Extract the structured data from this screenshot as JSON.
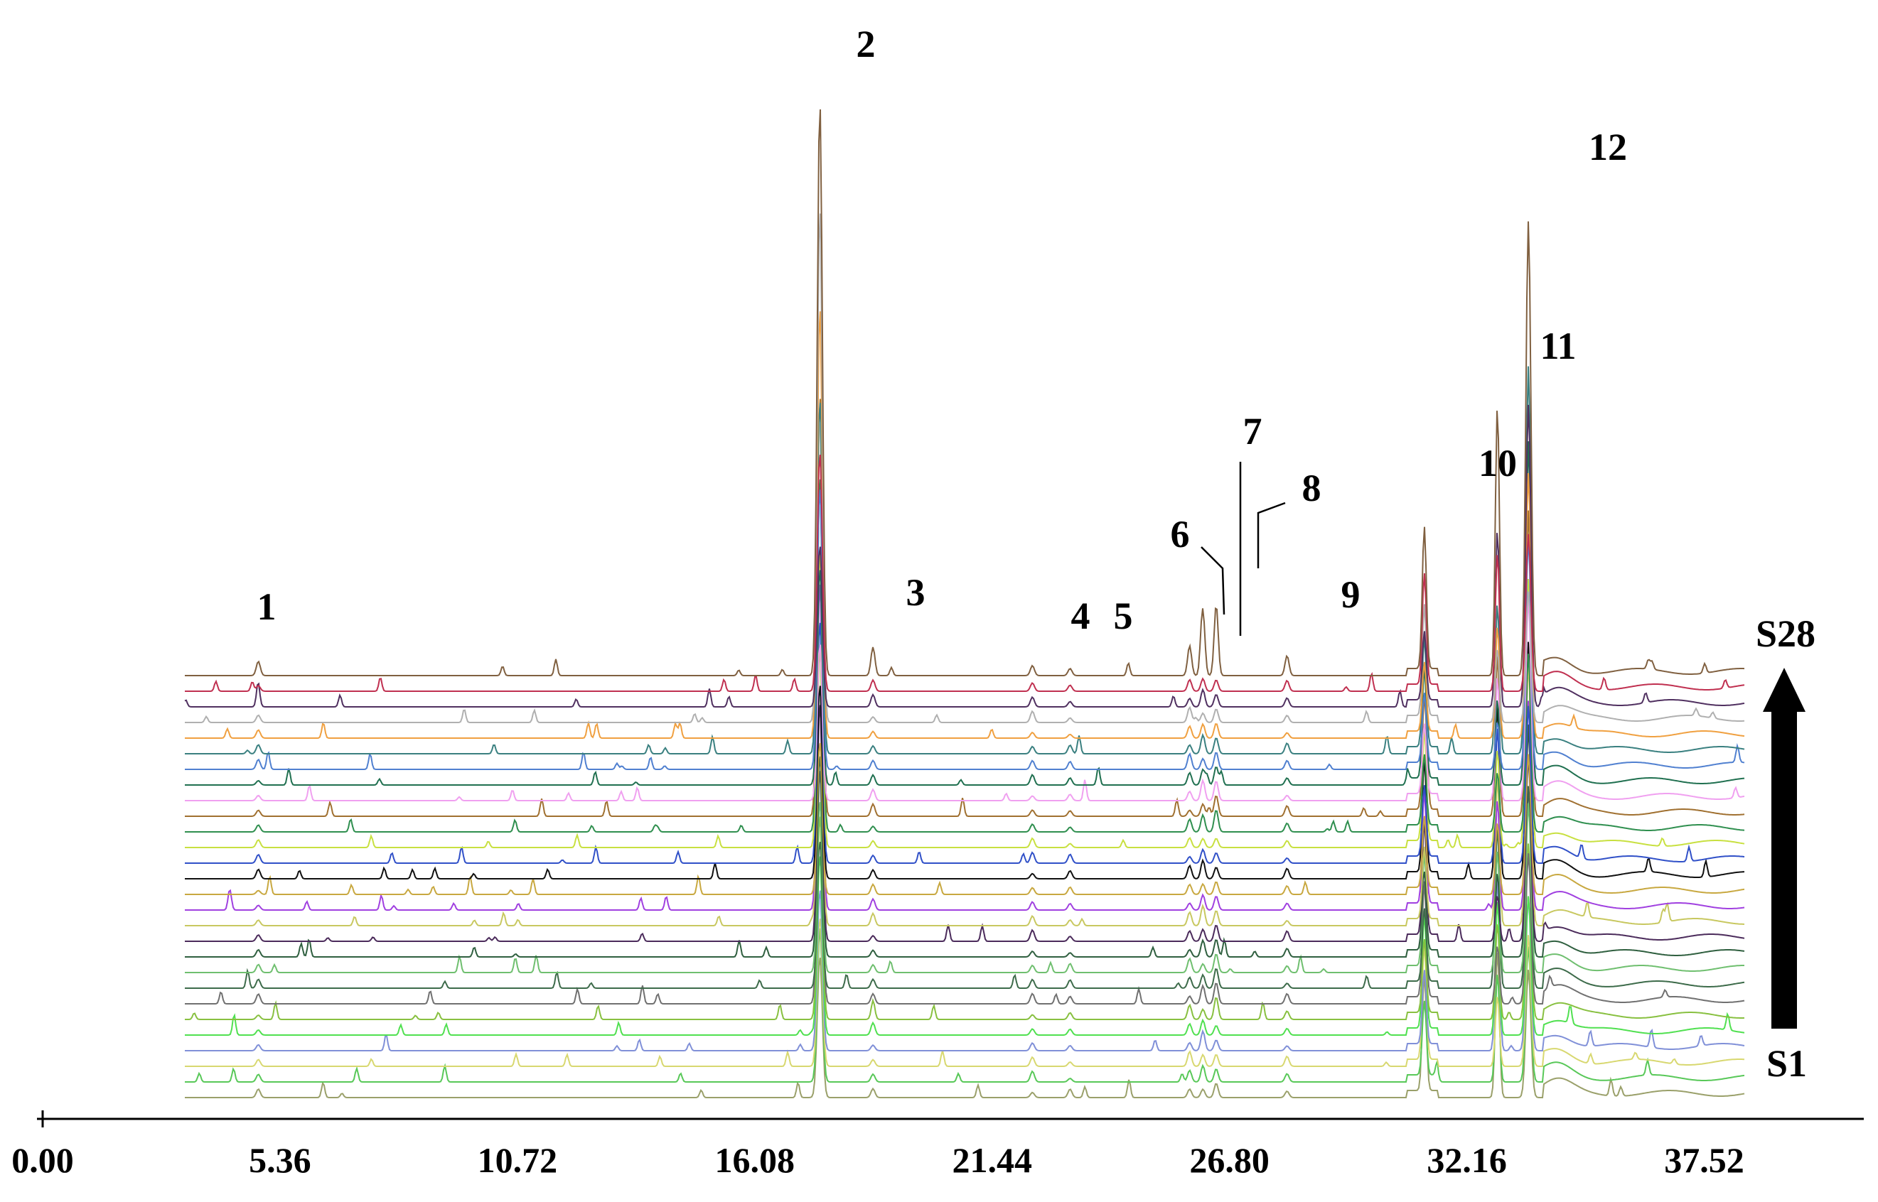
{
  "chart_data": {
    "type": "line",
    "description_free": true,
    "xlim": [
      0,
      38.5
    ],
    "x_ticks": [
      "0.00",
      "5.36",
      "10.72",
      "16.08",
      "21.44",
      "26.80",
      "32.16",
      "37.52"
    ],
    "x_tick_values": [
      0,
      5.36,
      10.72,
      16.08,
      21.44,
      26.8,
      32.16,
      37.52
    ],
    "grid": false,
    "sample_first": "S1",
    "sample_last": "S28",
    "sample_count": 28,
    "trace_colors": [
      "#9aa06a",
      "#58c858",
      "#d8d870",
      "#8090d8",
      "#50e050",
      "#88c040",
      "#707070",
      "#3d6b4a",
      "#6fbf6f",
      "#2f5f3f",
      "#4b2b5b",
      "#c8c860",
      "#a040e0",
      "#c8a840",
      "#101010",
      "#3050c8",
      "#c8e040",
      "#2f8f4f",
      "#a07030",
      "#f0a0f0",
      "#207050",
      "#5080d0",
      "#3a8080",
      "#f0a040",
      "#b0b0b0",
      "#503060",
      "#c03050",
      "#806040"
    ],
    "peaks": [
      {
        "label": "1",
        "x": 4.87,
        "base_height": 9
      },
      {
        "label": "2",
        "x": 17.55,
        "base_height": 20
      },
      {
        "label": "3",
        "x": 18.75,
        "base_height": 11
      },
      {
        "label": "4",
        "x": 22.35,
        "base_height": 10
      },
      {
        "label": "5",
        "x": 23.2,
        "base_height": 8
      },
      {
        "label": "6",
        "x": 25.9,
        "base_height": 14
      },
      {
        "label": "7",
        "x": 26.2,
        "base_height": 18
      },
      {
        "label": "8",
        "x": 26.5,
        "base_height": 20
      },
      {
        "label": "9",
        "x": 28.1,
        "base_height": 10
      },
      {
        "label": "10",
        "x": 31.2,
        "base_height": 28
      },
      {
        "label": "11",
        "x": 32.85,
        "base_height": 40
      },
      {
        "label": "12",
        "x": 33.55,
        "base_height": 60
      }
    ],
    "top_trace_peak_heights": {
      "1": 20,
      "2": 810,
      "3": 40,
      "4": 14,
      "5": 10,
      "6": 42,
      "7": 90,
      "8": 100,
      "9": 28,
      "10": 200,
      "11": 380,
      "12": 640
    }
  }
}
